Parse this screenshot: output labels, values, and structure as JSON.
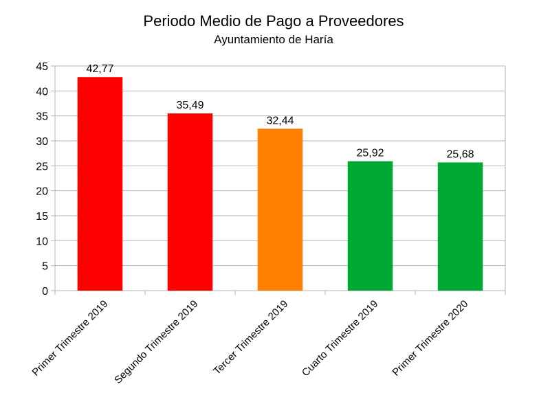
{
  "chart_data": {
    "type": "bar",
    "title": "Periodo Medio de Pago a Proveedores",
    "subtitle": "Ayuntamiento de Haría",
    "xlabel": "",
    "ylabel": "",
    "categories": [
      "Primer Trimestre 2019",
      "Segundo Trimestre 2019",
      "Tercer Trimestre 2019",
      "Cuarto Trimestre 2019",
      "Primer Trimestre 2020"
    ],
    "values": [
      42.77,
      35.49,
      32.44,
      25.92,
      25.68
    ],
    "data_labels": [
      "42,77",
      "35,49",
      "32,44",
      "25,92",
      "25,68"
    ],
    "bar_colors": [
      "#ff0000",
      "#ff0000",
      "#ff8000",
      "#00a933",
      "#00a933"
    ],
    "ylim": [
      0,
      45
    ],
    "yticks": [
      0,
      5,
      10,
      15,
      20,
      25,
      30,
      35,
      40,
      45
    ],
    "grid": true,
    "legend": "none"
  }
}
